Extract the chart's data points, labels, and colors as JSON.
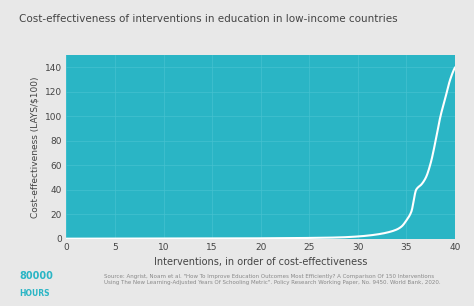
{
  "title": "Cost-effectiveness of interventions in education in low-income countries",
  "xlabel": "Interventions, in order of cost-effectiveness",
  "ylabel": "Cost-effectiveness (LAYS/$100)",
  "bg_color": "#2ab5c5",
  "outer_bg_color": "#e8e8e8",
  "line_color": "#ffffff",
  "grid_color": "#45c2d0",
  "title_color": "#444444",
  "label_color": "#444444",
  "tick_color": "#444444",
  "xlim": [
    0,
    40
  ],
  "ylim": [
    0,
    150
  ],
  "xticks": [
    0,
    5,
    10,
    15,
    20,
    25,
    30,
    35,
    40
  ],
  "yticks": [
    0,
    20,
    40,
    60,
    80,
    100,
    120,
    140
  ],
  "logo_color": "#2ab5c5",
  "source_text": "Source: Angrist, Noam et al. \"How To Improve Education Outcomes Most Efficiently? A Comparison Of 150 Interventions\nUsing The New Learning-Adjusted Years Of Schooling Metric\". Policy Research Working Paper, No. 9450. World Bank, 2020.",
  "logo_text_line1": "80000",
  "logo_text_line2": "HOURS",
  "curve_x": [
    0,
    5,
    10,
    15,
    20,
    25,
    28,
    30,
    31,
    32,
    33,
    34,
    34.5,
    35,
    35.5,
    36,
    36.2,
    36.5,
    37,
    37.5,
    38,
    38.5,
    39,
    39.5,
    40
  ],
  "curve_y": [
    0,
    0.05,
    0.1,
    0.15,
    0.3,
    0.6,
    1.0,
    1.8,
    2.5,
    3.5,
    5.0,
    7.5,
    10,
    15,
    22,
    40,
    42,
    44,
    50,
    62,
    80,
    100,
    115,
    130,
    140
  ]
}
